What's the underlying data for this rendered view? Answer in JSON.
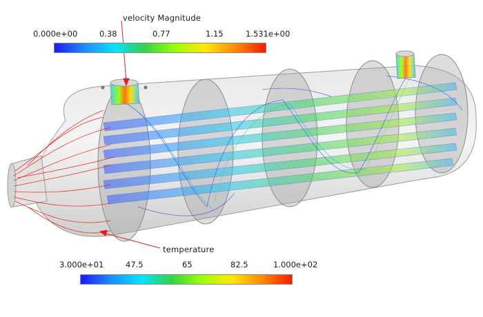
{
  "annotations": {
    "velocity": "velocity Magnitude",
    "temperature": "temperature"
  },
  "velocity_colorbar": {
    "ticks": [
      "0.000e+00",
      "0.38",
      "0.77",
      "1.15",
      "1.531e+00"
    ]
  },
  "temperature_colorbar": {
    "ticks": [
      "3.000e+01",
      "47.5",
      "65",
      "82.5",
      "1.000e+02"
    ]
  },
  "colors": {
    "colormap": [
      "#1a1aff",
      "#1e8cff",
      "#00e5ff",
      "#32d24b",
      "#9cff00",
      "#ffe800",
      "#ff8a00",
      "#ff1a00"
    ],
    "streamline_hot": "#e8160f",
    "streamline_cool": "#2b45e6",
    "shell": "#b8b8b8",
    "annotation_arrow": "#e02020"
  }
}
